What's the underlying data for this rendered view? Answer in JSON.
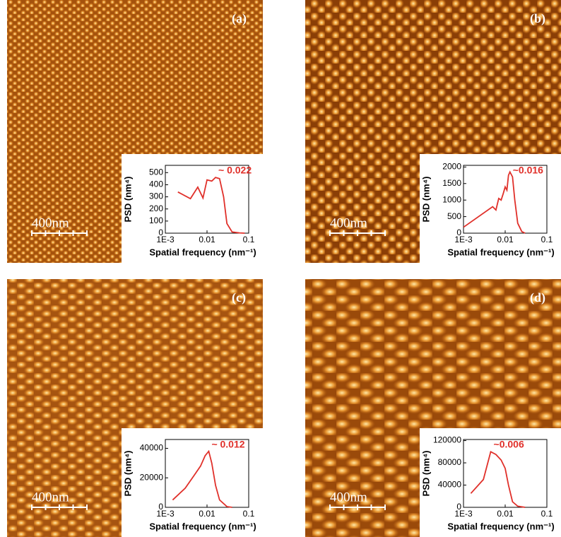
{
  "chart_data": [
    {
      "type": "line",
      "panel_label": "(a)",
      "scale_bar": "400nm",
      "annotation": "~ 0.022",
      "xlabel": "Spatial frequency (nm⁻¹)",
      "ylabel": "PSD (nm⁴)",
      "xscale": "log",
      "color": "#e0302a",
      "x": [
        0.002,
        0.004,
        0.006,
        0.008,
        0.01,
        0.013,
        0.016,
        0.02,
        0.025,
        0.03,
        0.04,
        0.06,
        0.08
      ],
      "values": [
        340,
        285,
        380,
        290,
        440,
        430,
        460,
        450,
        300,
        80,
        10,
        2,
        0
      ],
      "xlim": [
        0.001,
        0.1
      ],
      "xticks": [
        {
          "value": 0.001,
          "label": "1E-3"
        },
        0.01,
        0.1
      ],
      "ylim": [
        0,
        560
      ],
      "yticks": [
        0,
        100,
        200,
        300,
        400,
        500
      ]
    },
    {
      "type": "line",
      "panel_label": "(b)",
      "scale_bar": "400nm",
      "annotation": "~0.016",
      "xlabel": "Spatial frequency (nm⁻¹)",
      "ylabel": "PSD (nm⁴)",
      "xscale": "log",
      "color": "#e0302a",
      "x": [
        0.001,
        0.005,
        0.006,
        0.007,
        0.008,
        0.009,
        0.01,
        0.011,
        0.012,
        0.013,
        0.015,
        0.017,
        0.02,
        0.025,
        0.03
      ],
      "values": [
        180,
        800,
        700,
        1050,
        1000,
        1200,
        1400,
        1300,
        1750,
        1850,
        1700,
        1000,
        300,
        50,
        0
      ],
      "xlim": [
        0.001,
        0.1
      ],
      "xticks": [
        {
          "value": 0.001,
          "label": "1E-3"
        },
        0.01,
        0.1
      ],
      "ylim": [
        0,
        2050
      ],
      "yticks": [
        0,
        500,
        1000,
        1500,
        2000
      ]
    },
    {
      "type": "line",
      "panel_label": "(c)",
      "scale_bar": "400nm",
      "annotation": "~ 0.012",
      "xlabel": "Spatial frequency (nm⁻¹)",
      "ylabel": "PSD (nm⁴)",
      "xscale": "log",
      "color": "#e0302a",
      "x": [
        0.0015,
        0.003,
        0.005,
        0.007,
        0.009,
        0.011,
        0.013,
        0.016,
        0.02,
        0.03,
        0.04
      ],
      "values": [
        5000,
        13000,
        22000,
        28000,
        35000,
        38000,
        30000,
        15000,
        5000,
        500,
        0
      ],
      "xlim": [
        0.001,
        0.1
      ],
      "xticks": [
        {
          "value": 0.001,
          "label": "1E-3"
        },
        0.01,
        0.1
      ],
      "ylim": [
        0,
        46000
      ],
      "yticks": [
        0,
        20000,
        40000
      ]
    },
    {
      "type": "line",
      "panel_label": "(d)",
      "scale_bar": "400nm",
      "annotation": "~0.006",
      "xlabel": "Spatial frequency (nm⁻¹)",
      "ylabel": "PSD (nm⁴)",
      "xscale": "log",
      "color": "#e0302a",
      "x": [
        0.0015,
        0.003,
        0.0045,
        0.006,
        0.008,
        0.01,
        0.012,
        0.015,
        0.02,
        0.03
      ],
      "values": [
        25000,
        50000,
        100000,
        95000,
        85000,
        70000,
        40000,
        10000,
        2000,
        0
      ],
      "xlim": [
        0.001,
        0.1
      ],
      "xticks": [
        {
          "value": 0.001,
          "label": "1E-3"
        },
        0.01,
        0.1
      ],
      "ylim": [
        0,
        122000
      ],
      "yticks": [
        0,
        40000,
        80000,
        120000
      ]
    }
  ]
}
